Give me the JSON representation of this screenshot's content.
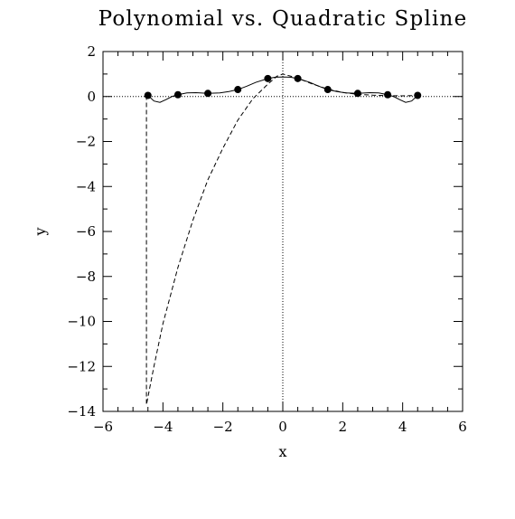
{
  "chart_data": {
    "type": "line",
    "title": "Polynomial vs. Quadratic Spline",
    "xlabel": "x",
    "ylabel": "y",
    "xlim": [
      -6,
      6
    ],
    "ylim": [
      -14,
      2
    ],
    "x_ticks": [
      -6,
      -4,
      -2,
      0,
      2,
      4,
      6
    ],
    "x_tick_labels": [
      "−6",
      "−4",
      "−2",
      "0",
      "2",
      "4",
      "6"
    ],
    "y_ticks": [
      2,
      0,
      -2,
      -4,
      -6,
      -8,
      -10,
      -12,
      -14
    ],
    "y_tick_labels": [
      "2",
      "0",
      "−2",
      "−4",
      "−6",
      "−8",
      "−10",
      "−12",
      "−14"
    ],
    "reference_lines": {
      "horizontal_y": 0,
      "vertical_x": 0,
      "style": "dotted"
    },
    "grid": false,
    "legend": false,
    "series": [
      {
        "style": "markers",
        "x": [
          -4.5,
          -3.5,
          -2.5,
          -1.5,
          -0.5,
          0.5,
          1.5,
          2.5,
          3.5,
          4.5
        ],
        "y": [
          0.05,
          0.08,
          0.14,
          0.31,
          0.8,
          0.8,
          0.31,
          0.14,
          0.08,
          0.05
        ]
      },
      {
        "style": "solid",
        "x": [
          -4.5,
          -4.3,
          -4.1,
          -3.9,
          -3.7,
          -3.5,
          -3.2,
          -2.9,
          -2.5,
          -2.1,
          -1.8,
          -1.5,
          -1.2,
          -0.9,
          -0.5,
          -0.25,
          0,
          0.25,
          0.5,
          0.9,
          1.2,
          1.5,
          1.8,
          2.1,
          2.5,
          2.9,
          3.2,
          3.5,
          3.7,
          3.9,
          4.1,
          4.3,
          4.5
        ],
        "y": [
          0.05,
          -0.2,
          -0.26,
          -0.14,
          0.0,
          0.08,
          0.16,
          0.17,
          0.14,
          0.16,
          0.22,
          0.31,
          0.46,
          0.63,
          0.8,
          0.86,
          0.87,
          0.86,
          0.8,
          0.63,
          0.46,
          0.31,
          0.22,
          0.16,
          0.14,
          0.17,
          0.16,
          0.08,
          0.0,
          -0.14,
          -0.26,
          -0.2,
          0.05
        ]
      },
      {
        "style": "dashed",
        "x": [
          -4.55,
          -4.55,
          -4.3,
          -4.0,
          -3.5,
          -3.0,
          -2.5,
          -2.0,
          -1.5,
          -1.0,
          -0.5,
          -0.2,
          0,
          0.5,
          1.0,
          1.5,
          2.0,
          2.5,
          3.0,
          3.5,
          4.0,
          4.5
        ],
        "y": [
          0.05,
          -13.7,
          -12.0,
          -10.1,
          -7.6,
          -5.5,
          -3.7,
          -2.3,
          -1.05,
          -0.1,
          0.55,
          0.9,
          1.0,
          0.82,
          0.55,
          0.33,
          0.18,
          0.1,
          0.06,
          0.04,
          0.03,
          0.05
        ]
      }
    ]
  }
}
